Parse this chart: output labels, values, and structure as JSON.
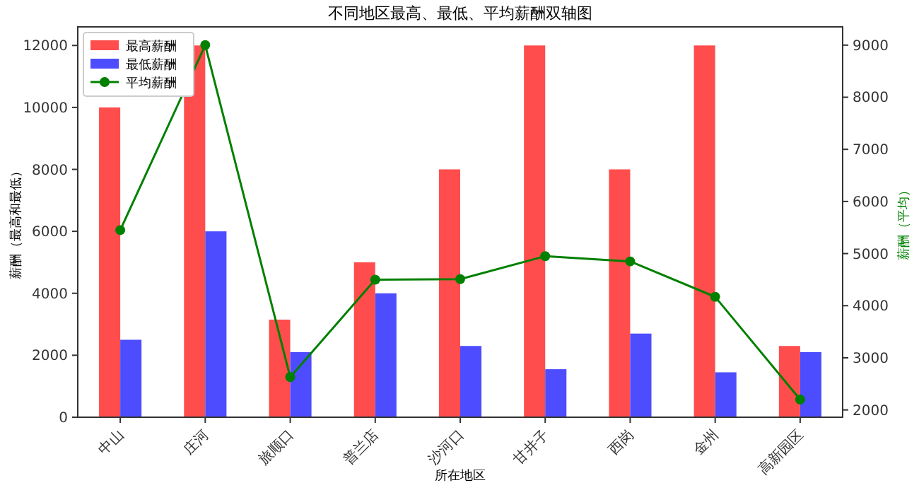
{
  "chart_data": {
    "type": "bar",
    "title": "不同地区最高、最低、平均薪酬双轴图",
    "xlabel": "所在地区",
    "ylabel": "薪酬（最高和最低）",
    "y2label": "薪酬（平均）",
    "categories": [
      "中山",
      "庄河",
      "旅顺口",
      "普兰店",
      "沙河口",
      "甘井子",
      "西岗",
      "金州",
      "高新园区"
    ],
    "series": [
      {
        "name": "最高薪酬",
        "color": "#ff4d4d",
        "values": [
          10000,
          12000,
          3150,
          5000,
          8000,
          12000,
          8000,
          12000,
          2300
        ]
      },
      {
        "name": "最低薪酬",
        "color": "#4d4dff",
        "values": [
          2500,
          6000,
          2100,
          4000,
          2300,
          1550,
          2700,
          1450,
          2100
        ]
      },
      {
        "name": "平均薪酬",
        "type": "line",
        "axis": "y2",
        "color": "#008000",
        "marker": "circle",
        "values": [
          5450,
          9000,
          2630,
          4500,
          4510,
          4950,
          4850,
          4170,
          2200
        ]
      }
    ],
    "ylim": [
      0,
      12600
    ],
    "yticks": [
      0,
      2000,
      4000,
      6000,
      8000,
      10000,
      12000
    ],
    "y2lim": [
      1860,
      9350
    ],
    "y2ticks": [
      2000,
      3000,
      4000,
      5000,
      6000,
      7000,
      8000,
      9000
    ],
    "legend": "top left",
    "grid": false
  }
}
